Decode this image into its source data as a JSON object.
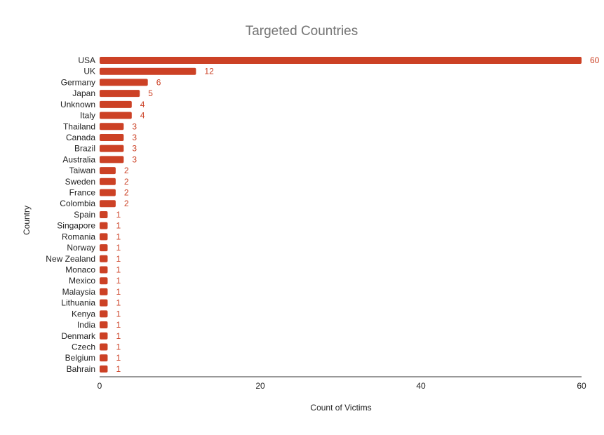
{
  "chart_data": {
    "type": "bar",
    "orientation": "horizontal",
    "title": "Targeted Countries",
    "xlabel": "Count of Victims",
    "ylabel": "Country",
    "xlim": [
      0,
      60
    ],
    "x_ticks": [
      0,
      20,
      40,
      60
    ],
    "grid": false,
    "legend": "none",
    "bar_color": "#cc4125",
    "categories": [
      "USA",
      "UK",
      "Germany",
      "Japan",
      "Unknown",
      "Italy",
      "Thailand",
      "Canada",
      "Brazil",
      "Australia",
      "Taiwan",
      "Sweden",
      "France",
      "Colombia",
      "Spain",
      "Singapore",
      "Romania",
      "Norway",
      "New Zealand",
      "Monaco",
      "Mexico",
      "Malaysia",
      "Lithuania",
      "Kenya",
      "India",
      "Denmark",
      "Czech",
      "Belgium",
      "Bahrain"
    ],
    "values": [
      60,
      12,
      6,
      5,
      4,
      4,
      3,
      3,
      3,
      3,
      2,
      2,
      2,
      2,
      1,
      1,
      1,
      1,
      1,
      1,
      1,
      1,
      1,
      1,
      1,
      1,
      1,
      1,
      1
    ]
  }
}
